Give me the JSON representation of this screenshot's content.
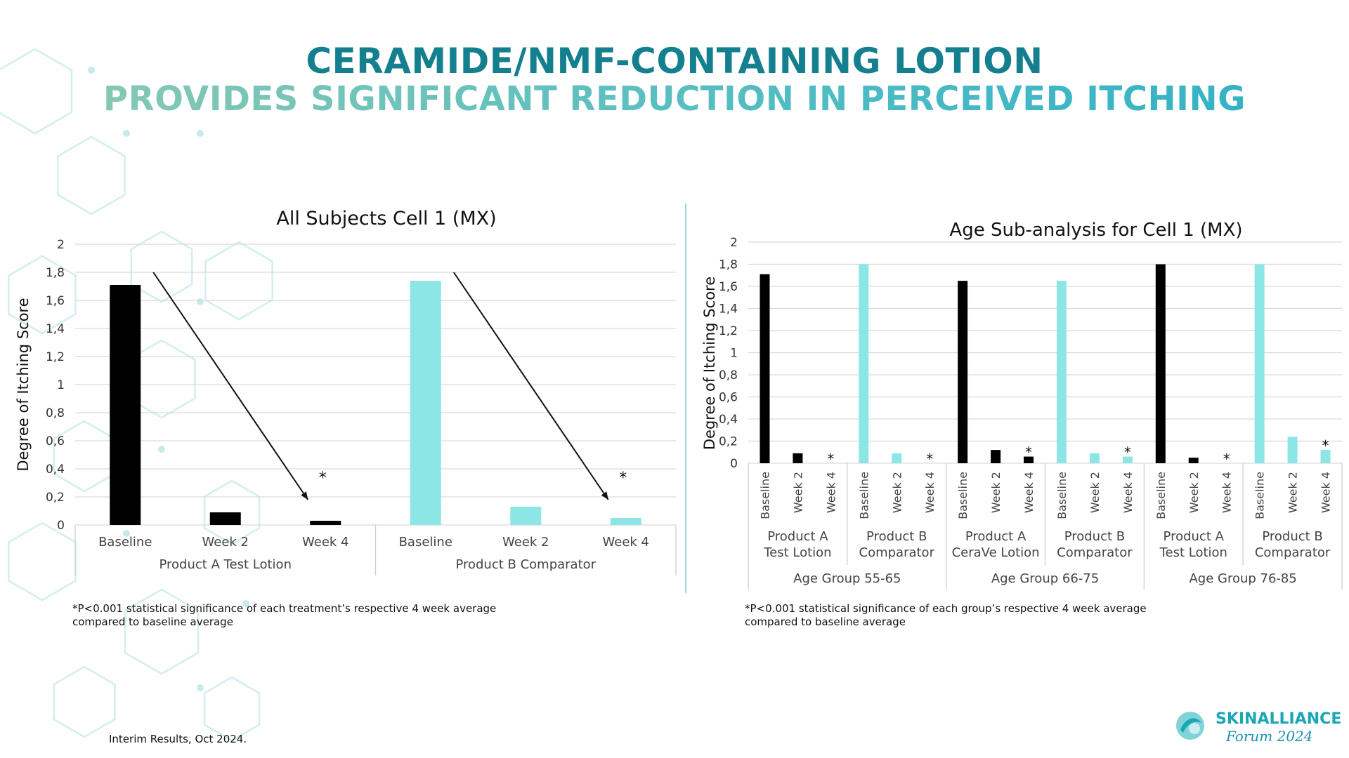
{
  "slide": {
    "title_line1": "CERAMIDE/NMF-CONTAINING LOTION",
    "title_line2": "PROVIDES SIGNIFICANT REDUCTION IN PERCEIVED ITCHING",
    "footnote_left": "*P<0.001 statistical significance of each treatment’s respective 4 week average compared to baseline average",
    "footnote_right": "*P<0.001 statistical significance of each group’s respective 4 week average compared to baseline average",
    "interim": "Interim Results, Oct 2024.",
    "logo_name": "SKINALLIANCE",
    "logo_sub": "Forum 2024"
  },
  "chart_data": [
    {
      "type": "bar",
      "title": "All Subjects Cell 1 (MX)",
      "ylabel": "Degree of Itching Score",
      "ylim": [
        0,
        2
      ],
      "yticks": [
        "0",
        "0,2",
        "0,4",
        "0,6",
        "0,8",
        "1",
        "1,2",
        "1,4",
        "1,6",
        "1,8",
        "2"
      ],
      "grid": true,
      "groups": [
        {
          "label": "Product A Test Lotion",
          "color": "#000000",
          "categories": [
            "Baseline",
            "Week 2",
            "Week 4"
          ],
          "values": [
            1.71,
            0.09,
            0.03
          ],
          "significant": [
            false,
            false,
            true
          ]
        },
        {
          "label": "Product B Comparator",
          "color": "#8de6e6",
          "categories": [
            "Baseline",
            "Week 2",
            "Week 4"
          ],
          "values": [
            1.74,
            0.13,
            0.05
          ],
          "significant": [
            false,
            false,
            true
          ]
        }
      ],
      "annotation_marker": "*"
    },
    {
      "type": "bar",
      "title": "Age Sub-analysis for Cell 1 (MX)",
      "ylabel": "Degree of Itching Score",
      "ylim": [
        0,
        2
      ],
      "yticks": [
        "0",
        "0,2",
        "0,4",
        "0,6",
        "0,8",
        "1",
        "1,2",
        "1,4",
        "1,6",
        "1,8",
        "2"
      ],
      "grid": true,
      "age_groups": [
        {
          "label": "Age Group 55-65",
          "products": [
            {
              "label": [
                "Product A",
                "Test Lotion"
              ],
              "color": "#000000",
              "categories": [
                "Baseline",
                "Week 2",
                "Week 4"
              ],
              "values": [
                1.71,
                0.09,
                0.0
              ],
              "significant": [
                false,
                false,
                true
              ]
            },
            {
              "label": [
                "Product B",
                "Comparator"
              ],
              "color": "#8de6e6",
              "categories": [
                "Baseline",
                "Week 2",
                "Week 4"
              ],
              "values": [
                1.8,
                0.09,
                0.0
              ],
              "significant": [
                false,
                false,
                true
              ]
            }
          ]
        },
        {
          "label": "Age Group 66-75",
          "products": [
            {
              "label": [
                "Product A",
                "CeraVe Lotion"
              ],
              "color": "#000000",
              "categories": [
                "Baseline",
                "Week 2",
                "Week 4"
              ],
              "values": [
                1.65,
                0.12,
                0.06
              ],
              "significant": [
                false,
                false,
                true
              ]
            },
            {
              "label": [
                "Product B",
                "Comparator"
              ],
              "color": "#8de6e6",
              "categories": [
                "Baseline",
                "Week 2",
                "Week 4"
              ],
              "values": [
                1.65,
                0.09,
                0.06
              ],
              "significant": [
                false,
                false,
                true
              ]
            }
          ]
        },
        {
          "label": "Age Group 76-85",
          "products": [
            {
              "label": [
                "Product A",
                "Test Lotion"
              ],
              "color": "#000000",
              "categories": [
                "Baseline",
                "Week 2",
                "Week 4"
              ],
              "values": [
                1.8,
                0.05,
                0.0
              ],
              "significant": [
                false,
                false,
                true
              ]
            },
            {
              "label": [
                "Product B",
                "Comparator"
              ],
              "color": "#8de6e6",
              "categories": [
                "Baseline",
                "Week 2",
                "Week 4"
              ],
              "values": [
                1.8,
                0.24,
                0.12
              ],
              "significant": [
                false,
                false,
                true
              ]
            }
          ]
        }
      ],
      "annotation_marker": "*"
    }
  ]
}
